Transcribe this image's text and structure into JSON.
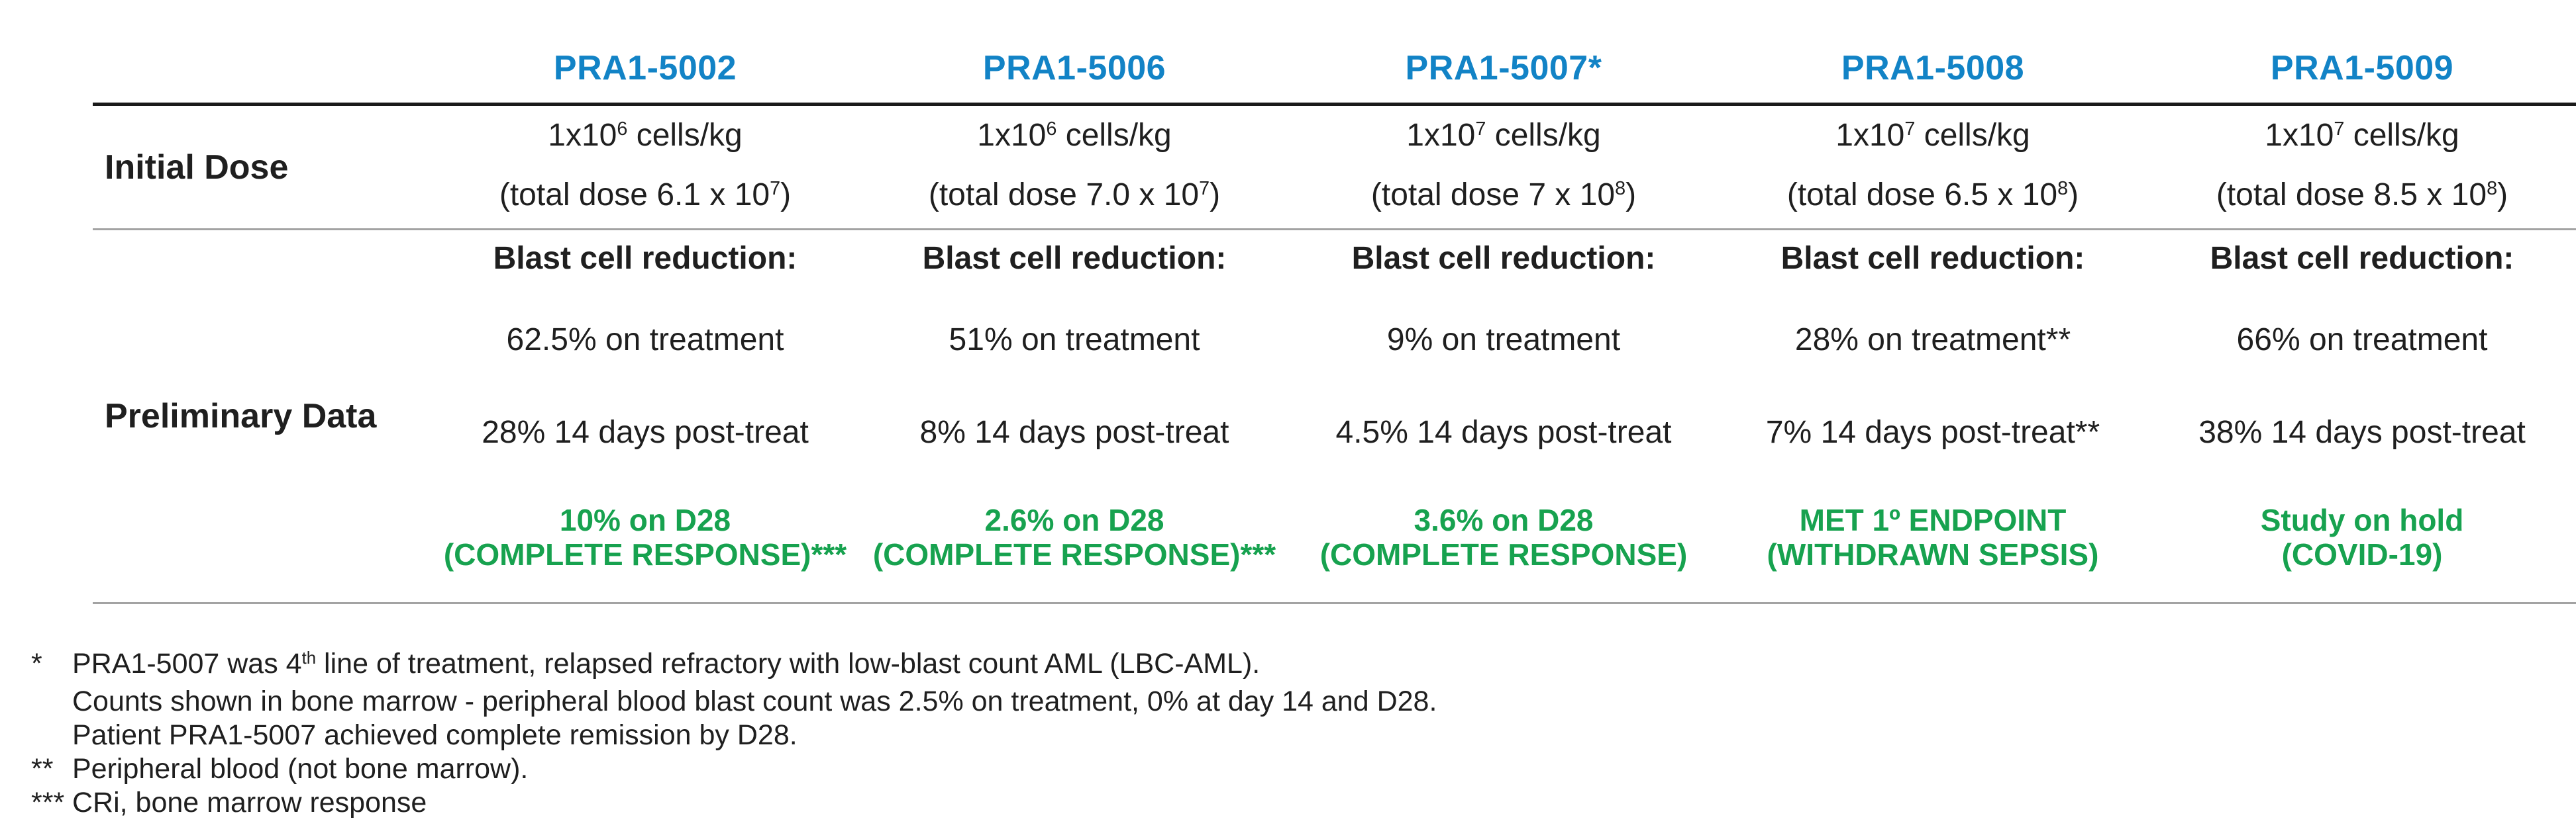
{
  "colors": {
    "header_blue": "#1283C6",
    "result_green": "#17A24F",
    "text_dark": "#1f1f1f",
    "line_black": "#1a1a1a",
    "line_gray": "#a3a3a3"
  },
  "table": {
    "row_labels": {
      "initial_dose": "Initial Dose",
      "preliminary_data": "Preliminary Data"
    },
    "columns": [
      {
        "id": "PRA1-5002",
        "dose": {
          "pre": "1x10",
          "sup": "6",
          "post": " cells/kg"
        },
        "total": {
          "pre": "(total dose 6.1 x 10",
          "sup": "7",
          "post": ")"
        },
        "blast_heading": "Blast cell reduction:",
        "on_treatment": "62.5% on treatment",
        "post_treatment": "28% 14 days post-treat",
        "result": {
          "line1": "10% on D28",
          "line2": "(COMPLETE RESPONSE)***"
        }
      },
      {
        "id": "PRA1-5006",
        "dose": {
          "pre": "1x10",
          "sup": "6",
          "post": " cells/kg"
        },
        "total": {
          "pre": "(total dose 7.0 x 10",
          "sup": "7",
          "post": ")"
        },
        "blast_heading": "Blast cell reduction:",
        "on_treatment": "51% on treatment",
        "post_treatment": "8% 14 days post-treat",
        "result": {
          "line1": "2.6% on D28",
          "line2": "(COMPLETE RESPONSE)***"
        }
      },
      {
        "id": "PRA1-5007*",
        "dose": {
          "pre": "1x10",
          "sup": "7",
          "post": " cells/kg"
        },
        "total": {
          "pre": "(total dose 7 x 10",
          "sup": "8",
          "post": ")"
        },
        "blast_heading": "Blast cell reduction:",
        "on_treatment": "9% on treatment",
        "post_treatment": "4.5% 14 days post-treat",
        "result": {
          "line1": "3.6% on D28",
          "line2": "(COMPLETE RESPONSE)"
        }
      },
      {
        "id": "PRA1-5008",
        "dose": {
          "pre": "1x10",
          "sup": "7",
          "post": " cells/kg"
        },
        "total": {
          "pre": "(total dose 6.5 x 10",
          "sup": "8",
          "post": ")"
        },
        "blast_heading": "Blast cell reduction:",
        "on_treatment": "28% on treatment**",
        "post_treatment": "7% 14 days post-treat**",
        "result": {
          "line1": "MET 1º ENDPOINT",
          "line2": "(WITHDRAWN SEPSIS)"
        }
      },
      {
        "id": "PRA1-5009",
        "dose": {
          "pre": "1x10",
          "sup": "7",
          "post": " cells/kg"
        },
        "total": {
          "pre": "(total dose 8.5 x 10",
          "sup": "8",
          "post": ")"
        },
        "blast_heading": "Blast cell reduction:",
        "on_treatment": "66% on treatment",
        "post_treatment": "38% 14 days post-treat",
        "result": {
          "line1": "Study on hold",
          "line2": "(COVID-19)"
        }
      }
    ]
  },
  "footnotes": {
    "fn1": {
      "marker": "*",
      "line1_pre": "PRA1-5007 was 4",
      "line1_sup": "th",
      "line1_post": " line of treatment, relapsed refractory with low-blast count AML (LBC-AML).",
      "line2": "Counts shown in bone marrow - peripheral blood blast count was 2.5% on treatment, 0% at day 14 and D28.",
      "line3": "Patient PRA1-5007 achieved complete remission by D28."
    },
    "fn2": {
      "marker": "**",
      "line1": "Peripheral blood (not bone marrow)."
    },
    "fn3": {
      "marker": "***",
      "line1": "CRi, bone marrow response"
    }
  }
}
